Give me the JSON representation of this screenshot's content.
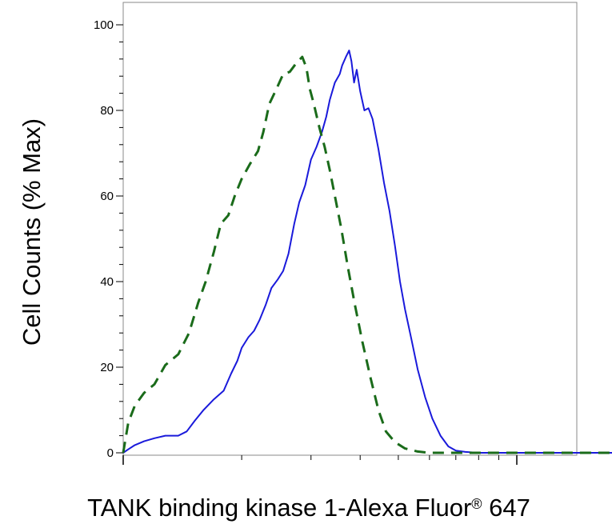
{
  "chart_data": {
    "type": "line",
    "title": "",
    "ylabel": "Cell Counts (% Max)",
    "xlabel_main": "TANK binding kinase 1-Alexa Fluor",
    "xlabel_mark": "®",
    "xlabel_tail": " 647",
    "x_scale": "log",
    "xlim": [
      1,
      35
    ],
    "ylim": [
      0,
      100
    ],
    "y_ticks": [
      0,
      20,
      40,
      60,
      80,
      100
    ],
    "y_tick_labels": [
      "0",
      "20",
      "40",
      "60",
      "80",
      "100"
    ],
    "grid": false,
    "legend": "none",
    "series": [
      {
        "color": "#1a1adb",
        "style": "solid",
        "points": [
          [
            1.0,
            0
          ],
          [
            1.03,
            0.8
          ],
          [
            1.07,
            1.8
          ],
          [
            1.13,
            2.7
          ],
          [
            1.2,
            3.4
          ],
          [
            1.28,
            4.0
          ],
          [
            1.38,
            4.0
          ],
          [
            1.45,
            5.0
          ],
          [
            1.52,
            7.5
          ],
          [
            1.6,
            10.0
          ],
          [
            1.7,
            12.5
          ],
          [
            1.8,
            14.5
          ],
          [
            1.88,
            18.5
          ],
          [
            1.95,
            21.5
          ],
          [
            2.0,
            24.5
          ],
          [
            2.08,
            27.0
          ],
          [
            2.15,
            28.5
          ],
          [
            2.22,
            31.0
          ],
          [
            2.3,
            34.5
          ],
          [
            2.38,
            38.5
          ],
          [
            2.47,
            40.5
          ],
          [
            2.55,
            42.5
          ],
          [
            2.63,
            46.5
          ],
          [
            2.72,
            53.5
          ],
          [
            2.8,
            58.5
          ],
          [
            2.9,
            62.5
          ],
          [
            3.0,
            68.5
          ],
          [
            3.1,
            71.5
          ],
          [
            3.2,
            75.0
          ],
          [
            3.28,
            78.5
          ],
          [
            3.35,
            82.5
          ],
          [
            3.45,
            86.5
          ],
          [
            3.55,
            88.5
          ],
          [
            3.6,
            90.5
          ],
          [
            3.68,
            92.5
          ],
          [
            3.75,
            94.0
          ],
          [
            3.8,
            91.5
          ],
          [
            3.86,
            86.5
          ],
          [
            3.92,
            89.5
          ],
          [
            4.0,
            84.5
          ],
          [
            4.1,
            80.0
          ],
          [
            4.2,
            80.5
          ],
          [
            4.3,
            78.0
          ],
          [
            4.45,
            71.0
          ],
          [
            4.6,
            63.0
          ],
          [
            4.75,
            56.5
          ],
          [
            4.9,
            48.5
          ],
          [
            5.05,
            40.0
          ],
          [
            5.2,
            33.5
          ],
          [
            5.4,
            26.5
          ],
          [
            5.6,
            19.5
          ],
          [
            5.85,
            13.0
          ],
          [
            6.1,
            8.0
          ],
          [
            6.4,
            4.0
          ],
          [
            6.7,
            1.5
          ],
          [
            7.0,
            0.5
          ],
          [
            7.4,
            0.2
          ],
          [
            8.0,
            0
          ],
          [
            35,
            0
          ]
        ]
      },
      {
        "color": "#1a6b1a",
        "style": "dashed",
        "points": [
          [
            1.0,
            0
          ],
          [
            1.03,
            7.0
          ],
          [
            1.07,
            11.0
          ],
          [
            1.13,
            14.0
          ],
          [
            1.2,
            16.0
          ],
          [
            1.28,
            20.5
          ],
          [
            1.38,
            23.0
          ],
          [
            1.47,
            28.0
          ],
          [
            1.55,
            35.0
          ],
          [
            1.62,
            40.0
          ],
          [
            1.7,
            47.0
          ],
          [
            1.77,
            53.5
          ],
          [
            1.85,
            55.5
          ],
          [
            1.92,
            60.0
          ],
          [
            2.0,
            64.0
          ],
          [
            2.1,
            67.5
          ],
          [
            2.2,
            70.5
          ],
          [
            2.27,
            75.0
          ],
          [
            2.35,
            81.5
          ],
          [
            2.45,
            85.0
          ],
          [
            2.55,
            88.5
          ],
          [
            2.65,
            89.0
          ],
          [
            2.75,
            91.0
          ],
          [
            2.85,
            92.5
          ],
          [
            2.92,
            90.0
          ],
          [
            2.98,
            85.0
          ],
          [
            3.05,
            81.5
          ],
          [
            3.15,
            76.0
          ],
          [
            3.25,
            71.5
          ],
          [
            3.35,
            66.0
          ],
          [
            3.45,
            60.0
          ],
          [
            3.58,
            52.5
          ],
          [
            3.72,
            43.5
          ],
          [
            3.88,
            34.5
          ],
          [
            4.05,
            26.0
          ],
          [
            4.25,
            17.5
          ],
          [
            4.45,
            10.0
          ],
          [
            4.65,
            5.0
          ],
          [
            4.9,
            2.5
          ],
          [
            5.2,
            1.0
          ],
          [
            5.6,
            0.3
          ],
          [
            6.0,
            0
          ],
          [
            35,
            0
          ]
        ]
      }
    ]
  }
}
